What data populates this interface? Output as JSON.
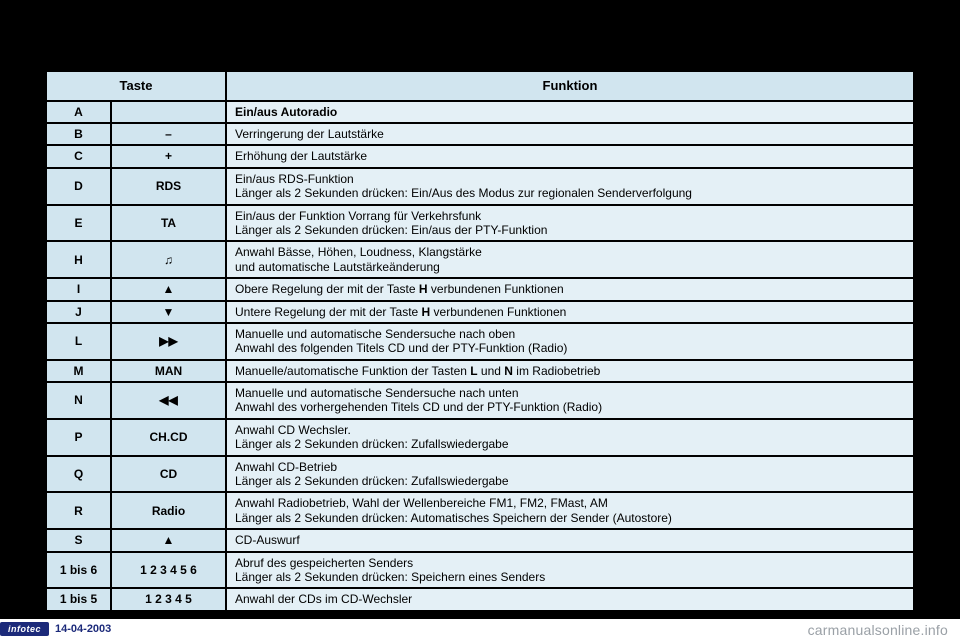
{
  "header": {
    "col1": "Taste",
    "col2": "Funktion"
  },
  "rows": [
    {
      "key": "A",
      "label": "",
      "func_html": "<strong>Ein/aus Autoradio</strong>"
    },
    {
      "key": "B",
      "label": "–",
      "func_html": "Verringerung der Lautstärke"
    },
    {
      "key": "C",
      "label": "+",
      "func_html": "Erhöhung der Lautstärke"
    },
    {
      "key": "D",
      "label": "RDS",
      "func_html": "Ein/aus RDS-Funktion<br>Länger als 2 Sekunden drücken: Ein/Aus des Modus zur regionalen Senderverfolgung"
    },
    {
      "key": "E",
      "label": "TA",
      "func_html": "Ein/aus der Funktion Vorrang für Verkehrsfunk<br>Länger als 2 Sekunden drücken: Ein/aus der PTY-Funktion"
    },
    {
      "key": "H",
      "label": "♫",
      "func_html": "Anwahl Bässe, Höhen, Loudness, Klangstärke<br>und automatische Lautstärkeänderung"
    },
    {
      "key": "I",
      "label": "▲",
      "func_html": "Obere Regelung der mit der Taste <strong>H</strong> verbundenen Funktionen"
    },
    {
      "key": "J",
      "label": "▼",
      "func_html": "Untere Regelung der mit der Taste <strong>H</strong> verbundenen Funktionen"
    },
    {
      "key": "L",
      "label": "▶▶",
      "func_html": "Manuelle und automatische Sendersuche nach oben<br>Anwahl des folgenden Titels CD und der PTY-Funktion (Radio)"
    },
    {
      "key": "M",
      "label": "MAN",
      "func_html": "Manuelle/automatische Funktion der Tasten <strong>L</strong> und <strong>N</strong> im Radiobetrieb"
    },
    {
      "key": "N",
      "label": "◀◀",
      "func_html": "Manuelle und automatische Sendersuche nach unten<br>Anwahl des vorhergehenden Titels CD und der PTY-Funktion (Radio)"
    },
    {
      "key": "P",
      "label": "CH.CD",
      "func_html": "Anwahl CD Wechsler.<br>Länger als 2 Sekunden drücken: Zufallswiedergabe"
    },
    {
      "key": "Q",
      "label": "CD",
      "func_html": "Anwahl CD-Betrieb<br>Länger als 2 Sekunden drücken: Zufallswiedergabe"
    },
    {
      "key": "R",
      "label": "Radio",
      "func_html": "Anwahl Radiobetrieb, Wahl der Wellenbereiche FM1, FM2, FMast, AM<br>Länger als 2 Sekunden drücken: Automatisches Speichern der Sender (Autostore)"
    },
    {
      "key": "S",
      "label": "▲",
      "func_html": "CD-Auswurf"
    },
    {
      "key": "1 bis 6",
      "label": "1 2 3 4 5 6",
      "func_html": "Abruf des gespeicherten Senders<br>Länger als 2 Sekunden drücken: Speichern eines Senders"
    },
    {
      "key": "1 bis 5",
      "label": "1 2 3 4 5",
      "func_html": "Anwahl der CDs im CD-Wechsler"
    }
  ],
  "footer": {
    "brand": "infotec",
    "date": "14-04-2003",
    "watermark": "carmanualsonline.info"
  }
}
